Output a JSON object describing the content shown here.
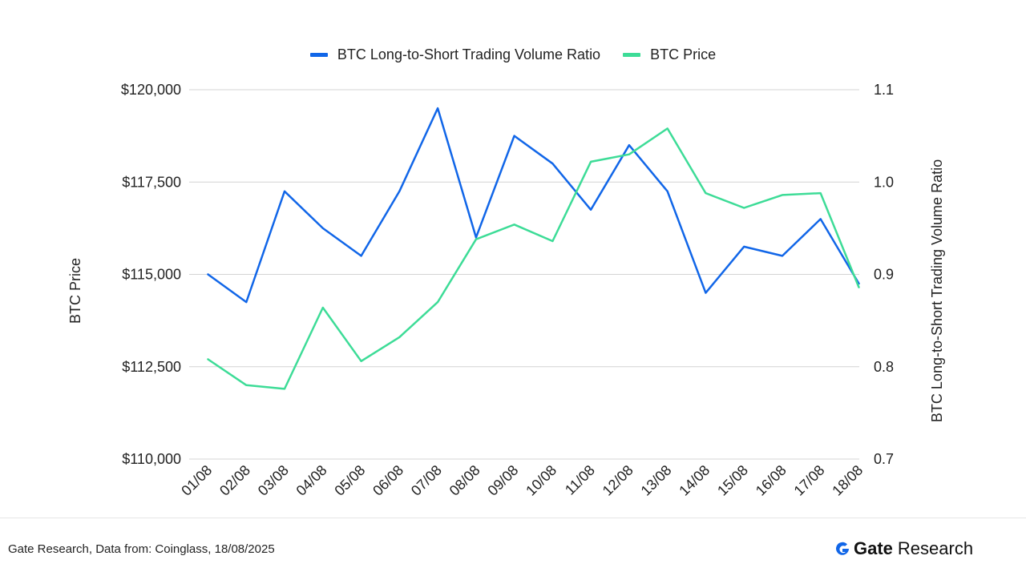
{
  "legend": {
    "ratio_label": "BTC Long-to-Short Trading Volume Ratio",
    "price_label": "BTC Price"
  },
  "footer": {
    "source": "Gate Research, Data from: Coinglass, 18/08/2025",
    "brand_name": "Gate",
    "brand_suffix": "Research"
  },
  "colors": {
    "ratio": "#1166e8",
    "price": "#3ddc97",
    "grid": "#d4d4d4",
    "brand_icon": "#1166e8"
  },
  "chart_data": {
    "type": "line",
    "x": [
      "01/08",
      "02/08",
      "03/08",
      "04/08",
      "05/08",
      "06/08",
      "07/08",
      "08/08",
      "09/08",
      "10/08",
      "11/08",
      "12/08",
      "13/08",
      "14/08",
      "15/08",
      "16/08",
      "17/08",
      "18/08"
    ],
    "series": [
      {
        "name": "BTC Long-to-Short Trading Volume Ratio",
        "axis": "right",
        "values": [
          0.9,
          0.87,
          0.99,
          0.95,
          0.92,
          0.99,
          1.08,
          0.94,
          1.05,
          1.02,
          0.97,
          1.04,
          0.99,
          0.88,
          0.93,
          0.92,
          0.96,
          0.89
        ]
      },
      {
        "name": "BTC Price",
        "axis": "left",
        "values": [
          112700,
          112000,
          111900,
          114100,
          112650,
          113300,
          114250,
          115950,
          116350,
          115900,
          118050,
          118250,
          118950,
          117200,
          116800,
          117150,
          117200,
          114650
        ]
      }
    ],
    "ylabel_left": "BTC Price",
    "ylabel_right": "BTC Long-to-Short Trading Volume Ratio",
    "ylim_left": [
      110000,
      120000
    ],
    "ylim_right": [
      0.7,
      1.1
    ],
    "yticks_left": [
      "$110,000",
      "$112,500",
      "$115,000",
      "$117,500",
      "$120,000"
    ],
    "yticks_right": [
      "0.7",
      "0.8",
      "0.9",
      "1.0",
      "1.1"
    ],
    "grid": true,
    "legend_position": "top-center"
  }
}
